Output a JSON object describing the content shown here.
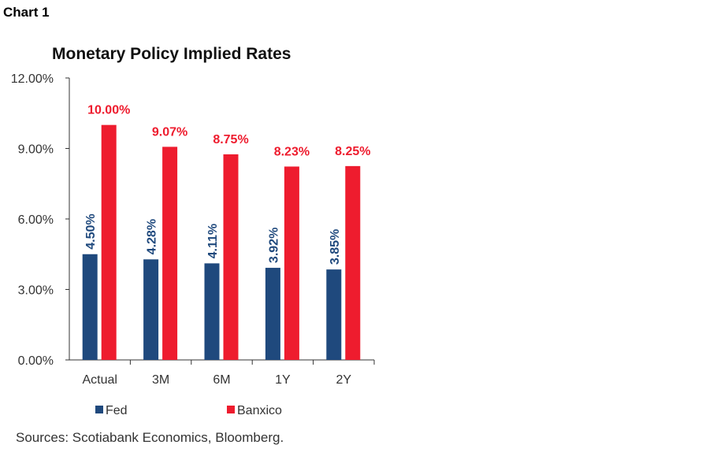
{
  "header": {
    "chart_label": "Chart 1"
  },
  "footer": {
    "source": "Sources: Scotiabank Economics, Bloomberg."
  },
  "colors": {
    "fed": "#1f497d",
    "banxico": "#ee1c2e"
  },
  "chart_data": {
    "type": "bar",
    "title": "Monetary Policy Implied Rates",
    "xlabel": "",
    "ylabel": "",
    "categories": [
      "Actual",
      "3M",
      "6M",
      "1Y",
      "2Y"
    ],
    "ylim": [
      0,
      12
    ],
    "yticks": [
      0,
      3,
      6,
      9,
      12
    ],
    "ytick_labels": [
      "0.00%",
      "3.00%",
      "6.00%",
      "9.00%",
      "12.00%"
    ],
    "series": [
      {
        "name": "Fed",
        "values": [
          4.5,
          4.28,
          4.11,
          3.92,
          3.85
        ],
        "labels": [
          "4.50%",
          "4.28%",
          "4.11%",
          "3.92%",
          "3.85%"
        ]
      },
      {
        "name": "Banxico",
        "values": [
          10.0,
          9.07,
          8.75,
          8.23,
          8.25
        ],
        "labels": [
          "10.00%",
          "9.07%",
          "8.75%",
          "8.23%",
          "8.25%"
        ]
      }
    ],
    "grid": false,
    "legend": "bottom"
  }
}
